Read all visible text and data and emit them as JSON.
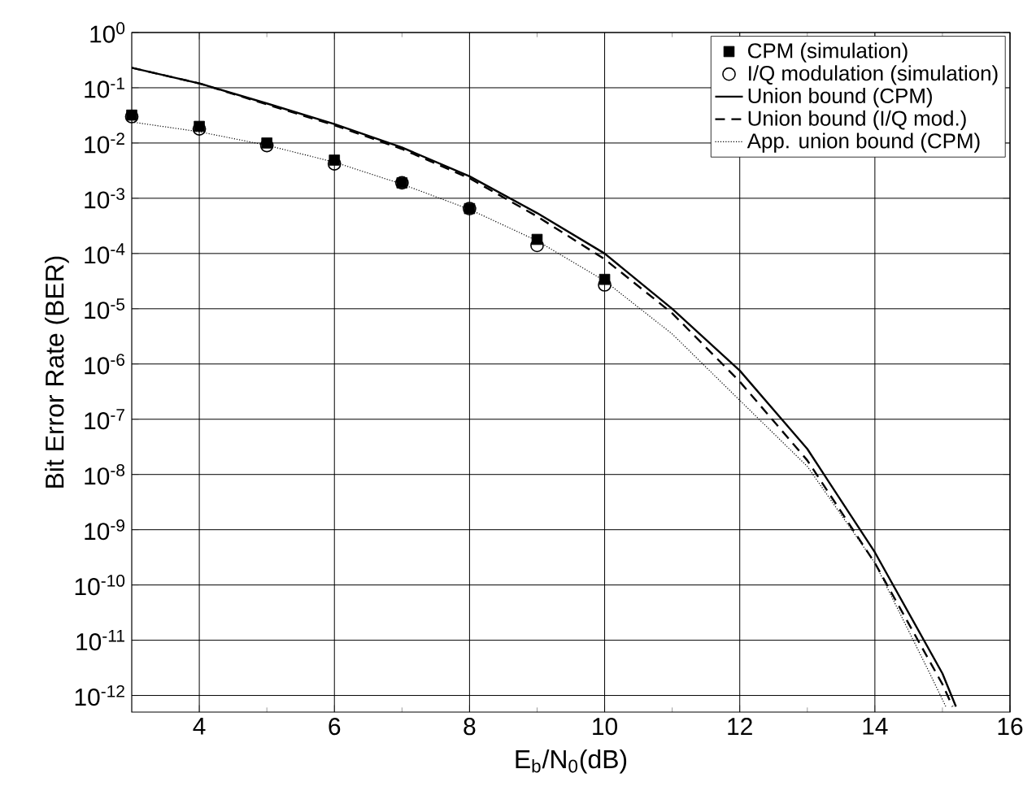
{
  "chart_data": {
    "type": "line",
    "xlabel": "E$_{b}$/N$_{0}$(dB)",
    "ylabel": "Bit Error Rate (BER)",
    "log": "y",
    "grid": true,
    "legend": "top right",
    "xlim": [
      3,
      16
    ],
    "ylim": [
      5e-13,
      1
    ],
    "xticks": [
      4,
      6,
      8,
      10,
      12,
      14,
      16
    ],
    "yticks": [
      {
        "value": 1,
        "label": "10$^{0}$"
      },
      {
        "value": 0.1,
        "label": "10$^{-1}$"
      },
      {
        "value": 0.01,
        "label": "10$^{-2}$"
      },
      {
        "value": 0.001,
        "label": "10$^{-3}$"
      },
      {
        "value": 0.0001,
        "label": "10$^{-4}$"
      },
      {
        "value": 1e-05,
        "label": "10$^{-5}$"
      },
      {
        "value": 1e-06,
        "label": "10$^{-6}$"
      },
      {
        "value": 1e-07,
        "label": "10$^{-7}$"
      },
      {
        "value": 1e-08,
        "label": "10$^{-8}$"
      },
      {
        "value": 1e-09,
        "label": "10$^{-9}$"
      },
      {
        "value": 1e-10,
        "label": "10$^{-10}$"
      },
      {
        "value": 1e-11,
        "label": "10$^{-11}$"
      },
      {
        "value": 1e-12,
        "label": "10$^{-12}$"
      }
    ],
    "series": [
      {
        "name": "CPM (simulation)",
        "type": "scatter",
        "marker": "square",
        "color": "#000000",
        "x": [
          3,
          4,
          5,
          6,
          7,
          8,
          9,
          10
        ],
        "values": [
          0.032,
          0.02,
          0.01,
          0.0049,
          0.0019,
          0.00065,
          0.00018,
          3.4e-05
        ]
      },
      {
        "name": "I/Q modulation (simulation)",
        "type": "scatter",
        "marker": "circle",
        "color": "#000000",
        "x": [
          3,
          4,
          5,
          6,
          7,
          8,
          9,
          10
        ],
        "values": [
          0.03,
          0.018,
          0.009,
          0.0042,
          0.0019,
          0.00065,
          0.00014,
          2.7e-05
        ]
      },
      {
        "name": "Union bound (CPM)",
        "type": "line",
        "line_style": "solid",
        "color": "#000000",
        "x": [
          3,
          4,
          5,
          6,
          7,
          8,
          9,
          10,
          11,
          12,
          13,
          14,
          15,
          15.2
        ],
        "values": [
          0.23,
          0.12,
          0.052,
          0.022,
          0.0083,
          0.0025,
          0.00054,
          0.0001,
          1e-05,
          7.6e-07,
          2.9e-08,
          3.9e-10,
          2.5e-12,
          6.3e-13
        ]
      },
      {
        "name": "Union bound (I/Q mod.)",
        "type": "line",
        "line_style": "dashed",
        "color": "#000000",
        "x": [
          3,
          4,
          5,
          6,
          7,
          8,
          9,
          10,
          11,
          12,
          13,
          14,
          15,
          15.15
        ],
        "values": [
          0.23,
          0.12,
          0.05,
          0.021,
          0.0078,
          0.0023,
          0.00047,
          7.9e-05,
          8.3e-06,
          4.8e-07,
          1.8e-08,
          2.5e-10,
          1.6e-12,
          6.3e-13
        ]
      },
      {
        "name": "App. union bound (CPM)",
        "type": "line",
        "line_style": "dotted",
        "color": "#000000",
        "x": [
          3,
          4,
          5,
          6,
          7,
          8,
          9,
          10,
          11,
          12,
          13,
          14,
          14.8,
          15.05
        ],
        "values": [
          0.024,
          0.016,
          0.0091,
          0.0045,
          0.0018,
          0.00063,
          0.00017,
          3.2e-05,
          3.5e-06,
          2.2e-07,
          1.4e-08,
          2.5e-10,
          2.7e-12,
          6.3e-13
        ]
      }
    ]
  }
}
